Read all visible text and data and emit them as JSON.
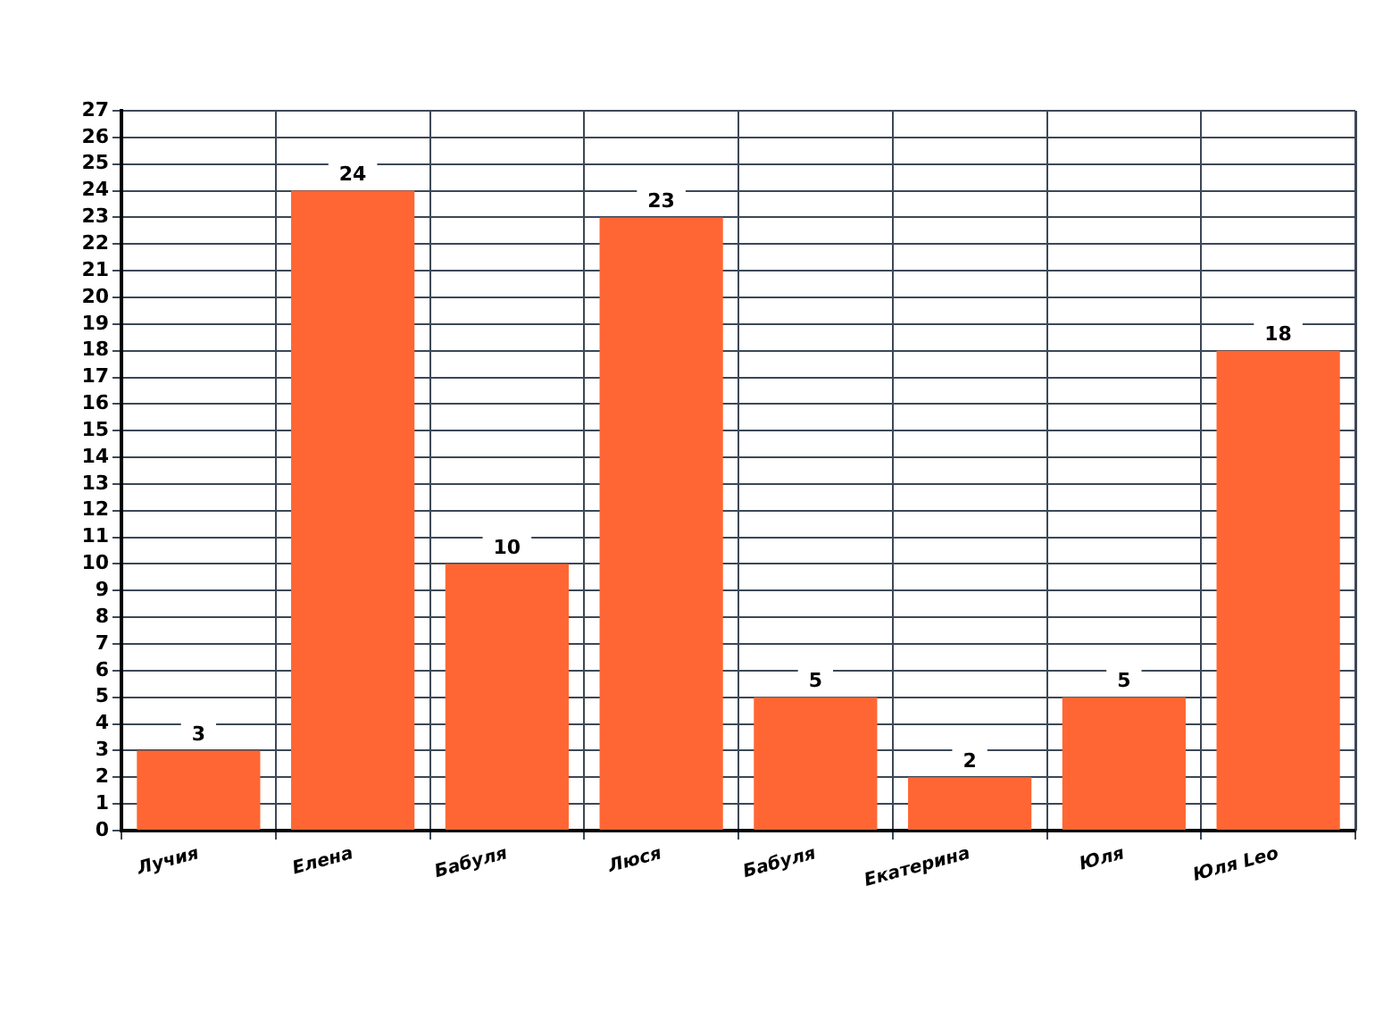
{
  "chart_data": {
    "type": "bar",
    "categories": [
      "Лучия",
      "Елена",
      "Бабуля",
      "Люся",
      "Бабуля",
      "Екатерина",
      "Юля",
      "Юля Leo"
    ],
    "values": [
      3,
      24,
      10,
      23,
      5,
      2,
      5,
      18
    ],
    "color": "#ff6633",
    "ylim": [
      0,
      27
    ],
    "yticks": [
      0,
      1,
      2,
      3,
      4,
      5,
      6,
      7,
      8,
      9,
      10,
      11,
      12,
      13,
      14,
      15,
      16,
      17,
      18,
      19,
      20,
      21,
      22,
      23,
      24,
      25,
      26,
      27
    ],
    "grid": true,
    "data_labels": true
  }
}
